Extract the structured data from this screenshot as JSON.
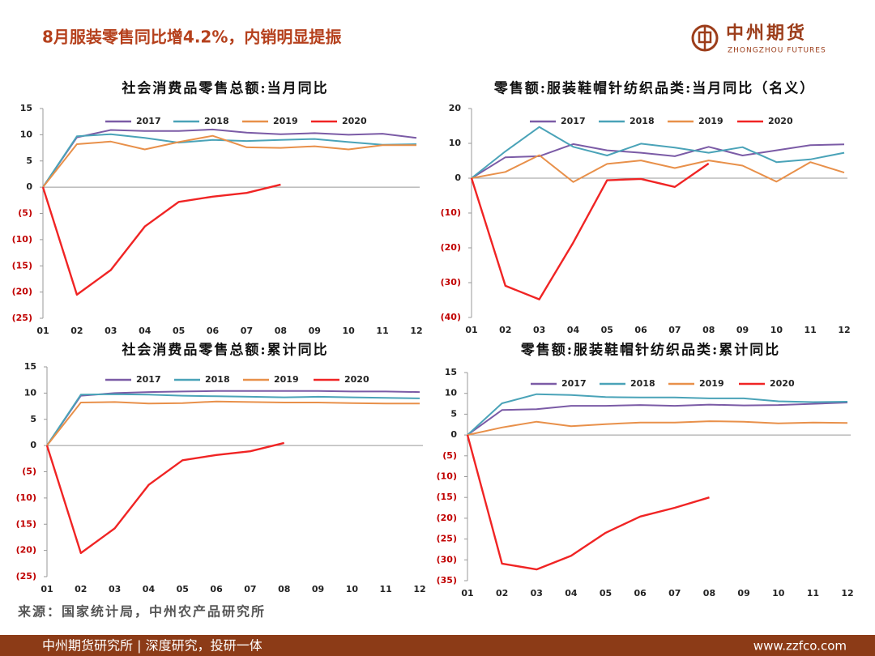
{
  "header": {
    "title": "8月服装零售同比增4.2%，内销明显提振",
    "logo_cn": "中州期货",
    "logo_en": "ZHONGZHOU FUTURES"
  },
  "source": "来源：国家统计局，中州农产品研究所",
  "footer": {
    "left": "中州期货研究所 | 深度研究，投研一体",
    "right": "www.zzfco.com"
  },
  "chart_data": [
    {
      "type": "line",
      "title": "社会消费品零售总额:当月同比",
      "categories": [
        "01",
        "02",
        "03",
        "04",
        "05",
        "06",
        "07",
        "08",
        "09",
        "10",
        "11",
        "12"
      ],
      "ylim": [
        -25,
        15
      ],
      "yticks": [
        15,
        10,
        5,
        0,
        {
          "value": -5,
          "label": "(5)"
        },
        {
          "value": -10,
          "label": "(10)"
        },
        {
          "value": -15,
          "label": "(15)"
        },
        {
          "value": -20,
          "label": "(20)"
        },
        {
          "value": -25,
          "label": "(25)"
        }
      ],
      "series": [
        {
          "name": "2017",
          "color": "#7b5ba6",
          "values": [
            0,
            9.5,
            10.9,
            10.7,
            10.7,
            11.0,
            10.4,
            10.1,
            10.3,
            10.0,
            10.2,
            9.4
          ]
        },
        {
          "name": "2018",
          "color": "#4aa3b8",
          "values": [
            0,
            9.7,
            10.1,
            9.4,
            8.5,
            9.0,
            8.8,
            9.0,
            9.2,
            8.6,
            8.1,
            8.2
          ]
        },
        {
          "name": "2019",
          "color": "#e8904a",
          "values": [
            0,
            8.2,
            8.7,
            7.2,
            8.6,
            9.8,
            7.6,
            7.5,
            7.8,
            7.2,
            8.0,
            8.0
          ]
        },
        {
          "name": "2020",
          "color": "#f02424",
          "values": [
            0,
            -20.5,
            -15.8,
            -7.5,
            -2.8,
            -1.8,
            -1.1,
            0.5,
            null,
            null,
            null,
            null
          ]
        }
      ]
    },
    {
      "type": "line",
      "title": "零售额:服装鞋帽针纺织品类:当月同比（名义）",
      "categories": [
        "01",
        "02",
        "03",
        "04",
        "05",
        "06",
        "07",
        "08",
        "09",
        "10",
        "11",
        "12"
      ],
      "ylim": [
        -40,
        20
      ],
      "yticks": [
        20,
        10,
        0,
        {
          "value": -10,
          "label": "(10)"
        },
        {
          "value": -20,
          "label": "(20)"
        },
        {
          "value": -30,
          "label": "(30)"
        },
        {
          "value": -40,
          "label": "(40)"
        }
      ],
      "series": [
        {
          "name": "2017",
          "color": "#7b5ba6",
          "values": [
            0,
            6.0,
            6.3,
            9.8,
            8.0,
            7.3,
            6.3,
            9.0,
            6.5,
            8.0,
            9.5,
            9.7
          ]
        },
        {
          "name": "2018",
          "color": "#4aa3b8",
          "values": [
            0,
            7.7,
            14.7,
            9.0,
            6.5,
            9.9,
            8.8,
            7.3,
            8.9,
            4.6,
            5.4,
            7.3
          ]
        },
        {
          "name": "2019",
          "color": "#e8904a",
          "values": [
            0,
            1.8,
            6.6,
            -1.1,
            4.1,
            5.1,
            2.9,
            5.1,
            3.6,
            -1.0,
            4.6,
            1.6
          ]
        },
        {
          "name": "2020",
          "color": "#f02424",
          "values": [
            0,
            -30.9,
            -34.8,
            -18.5,
            -0.6,
            -0.2,
            -2.5,
            4.2,
            null,
            null,
            null,
            null
          ]
        }
      ]
    },
    {
      "type": "line",
      "title": "社会消费品零售总额:累计同比",
      "categories": [
        "01",
        "02",
        "03",
        "04",
        "05",
        "06",
        "07",
        "08",
        "09",
        "10",
        "11",
        "12"
      ],
      "ylim": [
        -25,
        15
      ],
      "yticks": [
        15,
        10,
        5,
        0,
        {
          "value": -5,
          "label": "(5)"
        },
        {
          "value": -10,
          "label": "(10)"
        },
        {
          "value": -15,
          "label": "(15)"
        },
        {
          "value": -20,
          "label": "(20)"
        },
        {
          "value": -25,
          "label": "(25)"
        }
      ],
      "series": [
        {
          "name": "2017",
          "color": "#7b5ba6",
          "values": [
            0,
            9.5,
            10.0,
            10.2,
            10.3,
            10.4,
            10.4,
            10.4,
            10.4,
            10.3,
            10.3,
            10.2
          ]
        },
        {
          "name": "2018",
          "color": "#4aa3b8",
          "values": [
            0,
            9.7,
            9.8,
            9.7,
            9.5,
            9.4,
            9.3,
            9.2,
            9.3,
            9.2,
            9.1,
            9.0
          ]
        },
        {
          "name": "2019",
          "color": "#e8904a",
          "values": [
            0,
            8.2,
            8.3,
            8.0,
            8.1,
            8.4,
            8.3,
            8.2,
            8.2,
            8.1,
            8.0,
            8.0
          ]
        },
        {
          "name": "2020",
          "color": "#f02424",
          "values": [
            0,
            -20.5,
            -15.8,
            -7.5,
            -2.8,
            -1.8,
            -1.1,
            0.5,
            null,
            null,
            null,
            null
          ]
        }
      ]
    },
    {
      "type": "line",
      "title": "零售额:服装鞋帽针纺织品类:累计同比",
      "categories": [
        "01",
        "02",
        "03",
        "04",
        "05",
        "06",
        "07",
        "08",
        "09",
        "10",
        "11",
        "12"
      ],
      "ylim": [
        -35,
        15
      ],
      "yticks": [
        15,
        10,
        5,
        0,
        {
          "value": -5,
          "label": "(5)"
        },
        {
          "value": -10,
          "label": "(10)"
        },
        {
          "value": -15,
          "label": "(15)"
        },
        {
          "value": -20,
          "label": "(20)"
        },
        {
          "value": -25,
          "label": "(25)"
        },
        {
          "value": -30,
          "label": "(30)"
        },
        {
          "value": -35,
          "label": "(35)"
        }
      ],
      "series": [
        {
          "name": "2017",
          "color": "#7b5ba6",
          "values": [
            0,
            6.0,
            6.2,
            7.0,
            7.0,
            7.2,
            7.0,
            7.3,
            7.1,
            7.2,
            7.5,
            7.8
          ]
        },
        {
          "name": "2018",
          "color": "#4aa3b8",
          "values": [
            0,
            7.6,
            9.8,
            9.6,
            9.1,
            9.0,
            9.0,
            8.8,
            8.8,
            8.1,
            7.9,
            8.0
          ]
        },
        {
          "name": "2019",
          "color": "#e8904a",
          "values": [
            0,
            1.8,
            3.2,
            2.1,
            2.6,
            3.0,
            3.0,
            3.3,
            3.2,
            2.8,
            3.0,
            2.9
          ]
        },
        {
          "name": "2020",
          "color": "#f02424",
          "values": [
            0,
            -30.9,
            -32.3,
            -29.0,
            -23.5,
            -19.6,
            -17.5,
            -15.0,
            null,
            null,
            null,
            null
          ]
        }
      ]
    }
  ]
}
